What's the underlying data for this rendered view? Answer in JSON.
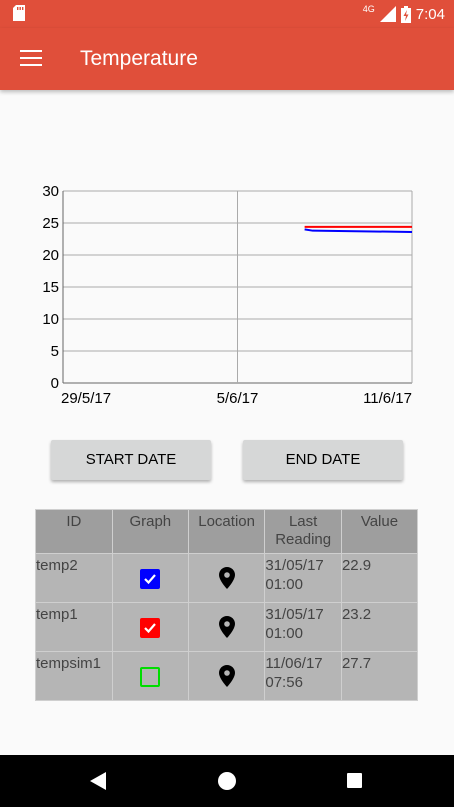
{
  "status_bar": {
    "time": "7:04",
    "network_label": "4G",
    "icons": [
      "sd-card-icon",
      "cellular-signal-icon",
      "battery-charging-icon"
    ]
  },
  "app_bar": {
    "title": "Temperature",
    "menu_icon": "hamburger-menu-icon",
    "color": "#e04f3a"
  },
  "chart_data": {
    "type": "line",
    "y_ticks": [
      "30",
      "25",
      "20",
      "15",
      "10",
      "5",
      "0"
    ],
    "x_ticks": [
      "29/5/17",
      "5/6/17",
      "11/6/17"
    ],
    "ylim": [
      0,
      30
    ],
    "x_range_days": [
      0,
      13
    ],
    "grid": true,
    "legend": "none",
    "series": [
      {
        "color": "#ff0000",
        "x_days": [
          9.0,
          9.3,
          13
        ],
        "y": [
          24.4,
          24.4,
          24.4
        ]
      },
      {
        "color": "#0000ff",
        "x_days": [
          9.0,
          9.3,
          13
        ],
        "y": [
          24.0,
          23.8,
          23.6
        ]
      }
    ]
  },
  "buttons": {
    "start_date": "START DATE",
    "end_date": "END DATE"
  },
  "table": {
    "headers": {
      "id": "ID",
      "graph": "Graph",
      "location": "Location",
      "last_reading_1": "Last",
      "last_reading_2": "Reading",
      "value": "Value"
    },
    "rows": [
      {
        "id": "temp2",
        "graph_checked": true,
        "graph_color": "#0000ff",
        "last_date": "31/05/17",
        "last_time": "01:00",
        "value": "22.9"
      },
      {
        "id": "temp1",
        "graph_checked": true,
        "graph_color": "#ff0000",
        "last_date": "31/05/17",
        "last_time": "01:00",
        "value": "23.2"
      },
      {
        "id": "tempsim1",
        "graph_checked": false,
        "graph_color": "#00dd00",
        "last_date": "11/06/17",
        "last_time": "07:56",
        "value": "27.7"
      }
    ],
    "location_icon": "map-pin-icon"
  },
  "nav_bar": {
    "icons": [
      "back-icon",
      "home-icon",
      "recents-icon"
    ]
  }
}
